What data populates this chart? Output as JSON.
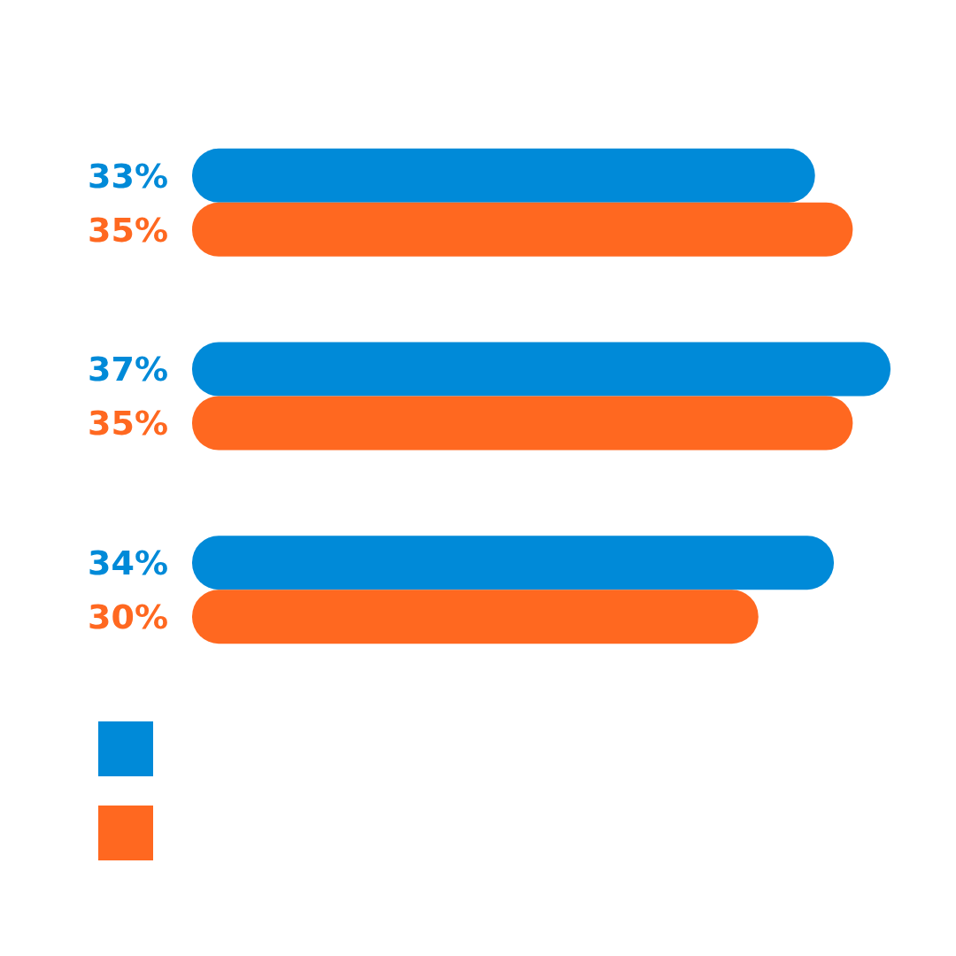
{
  "chart_data": {
    "type": "bar",
    "orientation": "horizontal",
    "categories": [
      null,
      null,
      null
    ],
    "series": [
      {
        "color": "#008ad8",
        "values": [
          33,
          37,
          34
        ],
        "value_labels": [
          "33%",
          "37%",
          "34%"
        ]
      },
      {
        "color": "#ff6820",
        "values": [
          35,
          35,
          30
        ],
        "value_labels": [
          "35%",
          "35%",
          "30%"
        ]
      }
    ]
  }
}
